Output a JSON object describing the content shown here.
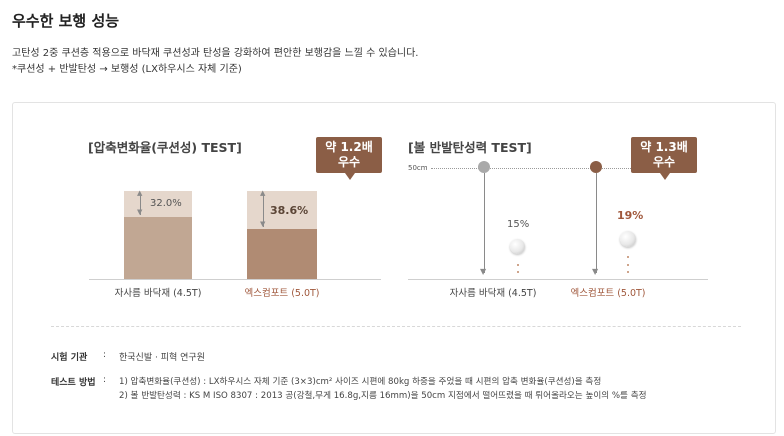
{
  "header": {
    "title": "우수한 보행 성능",
    "description": "고탄성 2중 쿠션층 적용으로 바닥재 쿠션성과 탄성을 강화하여 편안한 보행감을 느낄 수 있습니다.",
    "note": "*쿠션성 + 반발탄성 → 보행성 (LX하우시스 자체 기준)"
  },
  "compression_test": {
    "title": "[압축변화율(쿠션성) TEST]",
    "badge_line1": "약 1.2배",
    "badge_line2": "우수",
    "bars": [
      {
        "label": "자사름 바닥재 (4.5T)",
        "percent_label": "32.0%",
        "value": 32.0
      },
      {
        "label": "엑스컴포트 (5.0T)",
        "percent_label": "38.6%",
        "value": 38.6
      }
    ]
  },
  "rebound_test": {
    "title": "[볼 반발탄성력 TEST]",
    "drop_height_label": "50cm",
    "badge_line1": "약 1.3배",
    "badge_line2": "우수",
    "items": [
      {
        "label": "자사름 바닥재 (4.5T)",
        "percent_label": "15%",
        "value": 15
      },
      {
        "label": "엑스컴포트 (5.0T)",
        "percent_label": "19%",
        "value": 19
      }
    ]
  },
  "info": {
    "institution_label": "시험 기관",
    "institution_sep": ":",
    "institution_value": "한국신발 · 피혁 연구원",
    "method_label": "테스트 방법",
    "method_sep": ":",
    "method_1": "1) 압축변화율(쿠션성) : LX하우시스 자체 기준 (3×3)cm² 사이즈 시편에 80kg 하중을 주었을 때 시편의 압축 변화율(쿠션성)을 측정",
    "method_2": "2) 볼 반발탄성력 : KS M ISO 8307 : 2013 공(강철,무게 16.8g,지름 16mm)을 50cm 지점에서 떨어뜨렸을 때 튀어올라오는 높이의 %를 측정"
  },
  "colors": {
    "accent": "#8b5e46",
    "accent_text": "#a0583c",
    "bar_light": "#e5d7cc",
    "bar_dark_1": "#c1a793",
    "bar_dark_2": "#b08b73"
  }
}
